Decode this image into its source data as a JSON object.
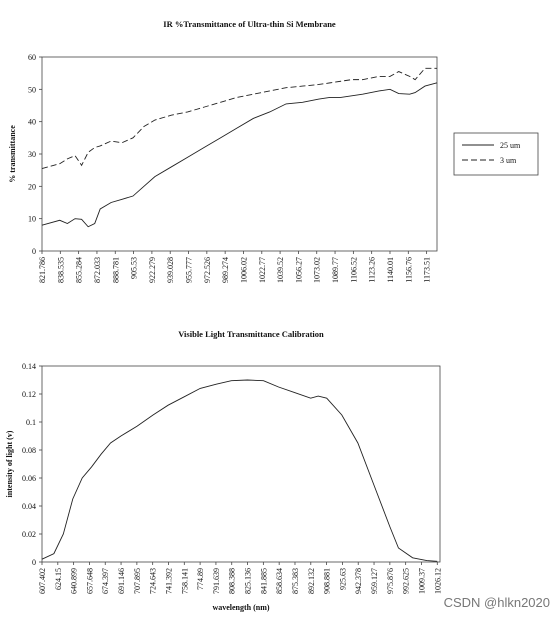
{
  "chart_data": [
    {
      "type": "line",
      "title": "IR %Transmittance of Ultra-thin Si Membrane",
      "y_label": "% transmittance",
      "x": [
        821.786,
        838,
        845,
        852,
        858,
        864,
        870,
        875,
        885,
        895,
        905,
        915,
        925,
        940,
        955,
        970,
        985,
        1000,
        1015,
        1030,
        1045,
        1060,
        1075,
        1085,
        1095,
        1105,
        1115,
        1130,
        1140,
        1148,
        1158,
        1163,
        1172,
        1183
      ],
      "series": [
        {
          "name": "25 um",
          "color": "#222222",
          "line_style": "solid",
          "values": [
            8,
            9.5,
            8.5,
            10,
            9.8,
            7.5,
            8.5,
            13,
            15,
            16,
            17,
            20,
            23,
            26,
            29,
            32,
            35,
            38,
            41,
            43,
            45.5,
            46,
            47,
            47.5,
            47.5,
            48,
            48.5,
            49.5,
            50,
            48.7,
            48.5,
            49,
            51,
            52
          ]
        },
        {
          "name": "3 um",
          "color": "#222222",
          "line_style": "dashed",
          "values": [
            25.5,
            27,
            28.5,
            29.5,
            26.5,
            30.5,
            32,
            32.5,
            34,
            33.5,
            35,
            38.5,
            40.5,
            42,
            43,
            44.5,
            46,
            47.5,
            48.5,
            49.5,
            50.5,
            51,
            51.5,
            52,
            52.5,
            53,
            53,
            54,
            54,
            55.5,
            54,
            53,
            56.5,
            56.5
          ]
        }
      ],
      "xlim": [
        821.786,
        1183
      ],
      "xticks": [
        821.786,
        838.535,
        855.284,
        872.033,
        888.781,
        905.53,
        922.279,
        939.028,
        955.777,
        972.526,
        989.274,
        1006.02,
        1022.77,
        1039.52,
        1056.27,
        1073.02,
        1089.77,
        1106.52,
        1123.26,
        1140.01,
        1156.76,
        1173.51
      ],
      "ylim": [
        0,
        60
      ],
      "yticks": [
        0,
        10,
        20,
        30,
        40,
        50,
        60
      ],
      "legend": "right"
    },
    {
      "type": "line",
      "title": "Visible Light Transmittance Calibration",
      "y_label": "intensity of light (v)",
      "x_label": "wavelength (nm)",
      "x": [
        607.402,
        620,
        630,
        640,
        650,
        660,
        670,
        680,
        691,
        708,
        725,
        741,
        758,
        775,
        792,
        808,
        825,
        842,
        858,
        875,
        892,
        900,
        909,
        925,
        942,
        959,
        976,
        985,
        1000,
        1015,
        1026.12
      ],
      "series": [
        {
          "color": "#222222",
          "line_style": "solid",
          "values": [
            0.002,
            0.006,
            0.02,
            0.045,
            0.06,
            0.068,
            0.077,
            0.085,
            0.09,
            0.097,
            0.105,
            0.112,
            0.118,
            0.124,
            0.127,
            0.1295,
            0.13,
            0.1295,
            0.125,
            0.121,
            0.117,
            0.1185,
            0.117,
            0.105,
            0.085,
            0.055,
            0.025,
            0.01,
            0.003,
            0.001,
            0.0005
          ]
        }
      ],
      "xlim": [
        607.402,
        1029
      ],
      "xticks": [
        607.402,
        624.15,
        640.899,
        657.648,
        674.397,
        691.146,
        707.895,
        724.643,
        741.392,
        758.141,
        774.89,
        791.639,
        808.388,
        825.136,
        841.885,
        858.634,
        875.383,
        892.132,
        908.881,
        925.63,
        942.378,
        959.127,
        975.876,
        992.625,
        1009.37,
        1026.12
      ],
      "ylim": [
        0,
        0.14
      ],
      "yticks": [
        0,
        0.02,
        0.04,
        0.06,
        0.08,
        0.1,
        0.12,
        0.14
      ]
    }
  ],
  "watermark": "CSDN @hlkn2020"
}
